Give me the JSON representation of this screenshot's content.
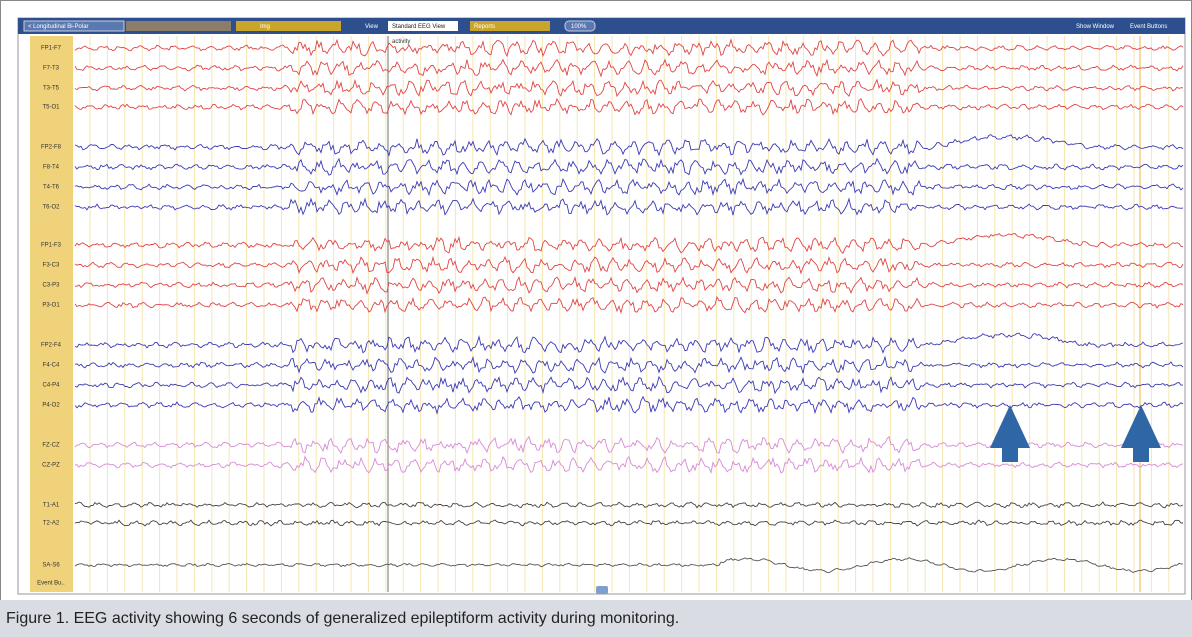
{
  "toolbar": {
    "montage": "< Longitudinal Bi-Polar",
    "image": "Img",
    "view_label": "View",
    "view": "Standard EEG View",
    "reports": "Reports",
    "zoom": "100%",
    "show_window": "Show Window",
    "event_buttons": "Event Buttons"
  },
  "marker": "activity",
  "channels": [
    "FP1-F7",
    "F7-T3",
    "T3-T5",
    "T5-O1",
    "FP2-F8",
    "F8-T4",
    "T4-T6",
    "T6-O2",
    "FP1-F3",
    "F3-C3",
    "C3-P3",
    "P3-O1",
    "FP2-F4",
    "F4-C4",
    "C4-P4",
    "P4-O2",
    "FZ-CZ",
    "CZ-PZ",
    "T1-A1",
    "T2-A2",
    "SA-S6"
  ],
  "event_label": "Event Bu..",
  "caption": "Figure 1. EEG activity showing 6 seconds of generalized epileptiform activity during monitoring."
}
